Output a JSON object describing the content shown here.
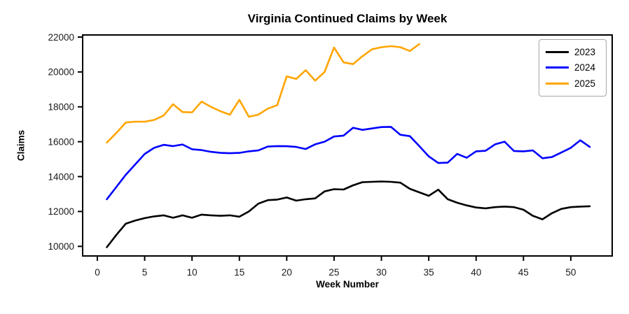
{
  "chart_data": {
    "type": "line",
    "title": "Virginia Continued Claims by Week",
    "xlabel": "Week Number",
    "ylabel": "Claims",
    "x_ticks": [
      0,
      5,
      10,
      15,
      20,
      25,
      30,
      35,
      40,
      45,
      50
    ],
    "y_ticks": [
      10000,
      12000,
      14000,
      16000,
      18000,
      20000,
      22000
    ],
    "xlim": [
      -1.55,
      54.37
    ],
    "ylim": [
      9450,
      22120
    ],
    "grid": false,
    "legend_position": "upper right",
    "week_start": 1,
    "series": [
      {
        "name": "2023",
        "color": "#000000",
        "values": [
          9950,
          10650,
          11300,
          11480,
          11620,
          11720,
          11780,
          11640,
          11780,
          11640,
          11820,
          11780,
          11750,
          11780,
          11700,
          12000,
          12450,
          12650,
          12680,
          12800,
          12620,
          12700,
          12750,
          13150,
          13280,
          13260,
          13500,
          13680,
          13700,
          13720,
          13700,
          13650,
          13300,
          13100,
          12900,
          13250,
          12700,
          12500,
          12350,
          12230,
          12180,
          12250,
          12280,
          12250,
          12100,
          11750,
          11550,
          11900,
          12150,
          12250,
          12280,
          12300
        ]
      },
      {
        "name": "2024",
        "color": "#0000ff",
        "values": [
          12700,
          13400,
          14100,
          14700,
          15300,
          15650,
          15820,
          15750,
          15840,
          15570,
          15520,
          15420,
          15360,
          15340,
          15360,
          15450,
          15500,
          15720,
          15750,
          15740,
          15700,
          15580,
          15850,
          16000,
          16300,
          16350,
          16800,
          16680,
          16760,
          16840,
          16850,
          16400,
          16320,
          15750,
          15160,
          14780,
          14800,
          15300,
          15080,
          15450,
          15480,
          15850,
          16000,
          15470,
          15450,
          15500,
          15050,
          15120,
          15380,
          15650,
          16080,
          15700
        ]
      },
      {
        "name": "2025",
        "color": "#ffa500",
        "values": [
          15950,
          16500,
          17100,
          17150,
          17150,
          17250,
          17500,
          18150,
          17700,
          17680,
          18300,
          18000,
          17750,
          17550,
          18400,
          17430,
          17550,
          17900,
          18100,
          19750,
          19600,
          20100,
          19500,
          20000,
          21400,
          20550,
          20450,
          20900,
          21300,
          21420,
          21480,
          21420,
          21200,
          21600
        ]
      }
    ]
  }
}
